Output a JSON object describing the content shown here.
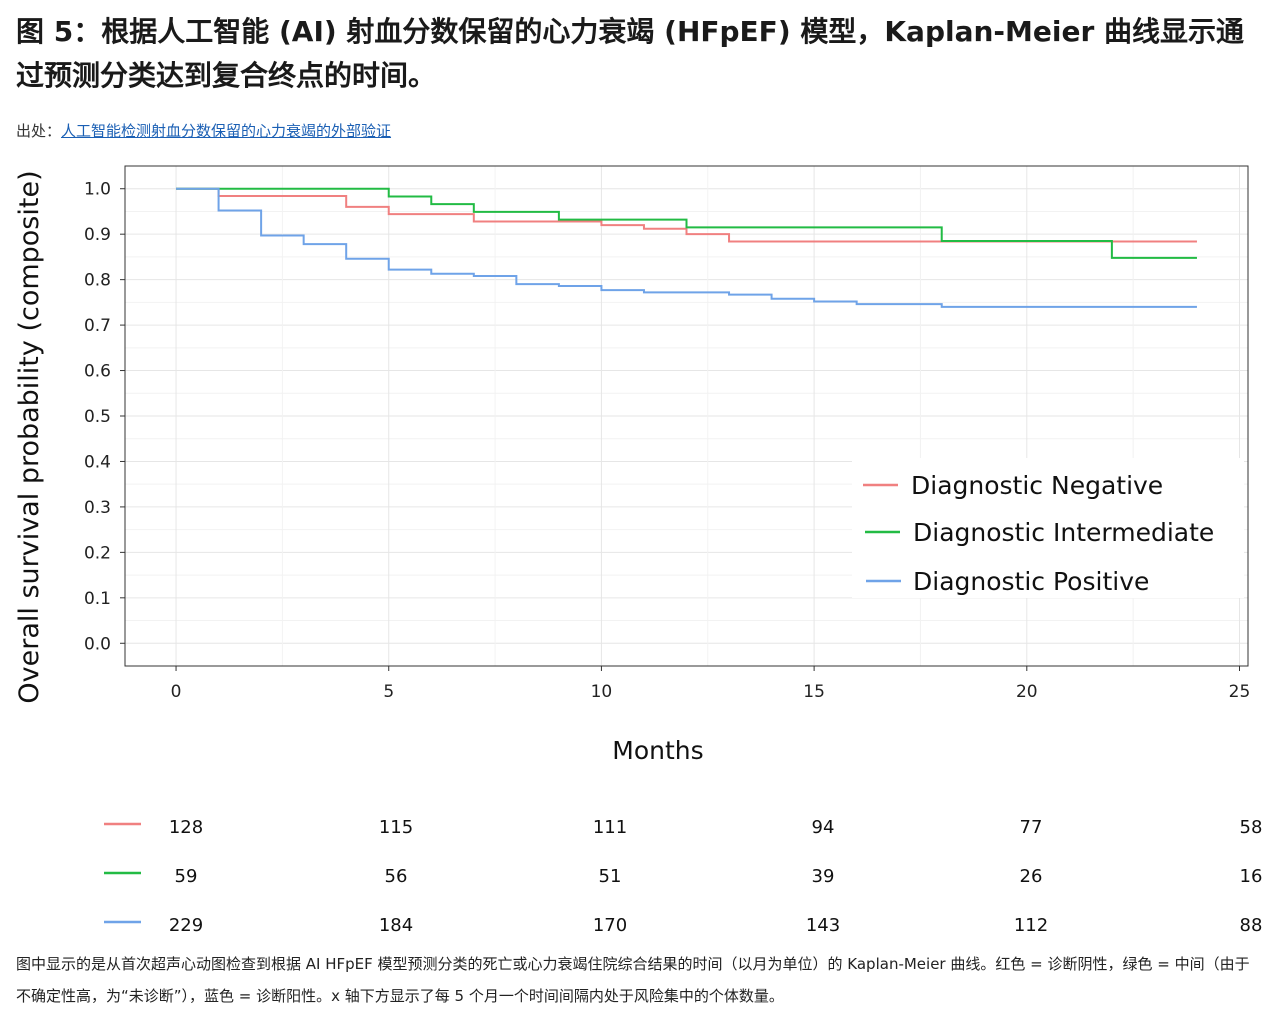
{
  "header": {
    "title": "图 5：根据人工智能 (AI) 射血分数保留的心力衰竭 (HFpEF) 模型，Kaplan-Meier 曲线显示通过预测分类达到复合终点的时间。",
    "source_prefix": "出处：",
    "source_link": "人工智能检测射血分数保留的心力衰竭的外部验证"
  },
  "caption": "图中显示的是从首次超声心动图检查到根据 AI HFpEF 模型预测分类的死亡或心力衰竭住院综合结果的时间（以月为单位）的 Kaplan-Meier 曲线。红色 = 诊断阴性，绿色 = 中间（由于不确定性高，为“未诊断”），蓝色 = 诊断阳性。x 轴下方显示了每 5 个月一个时间间隔内处于风险集中的个体数量。",
  "chart_data": {
    "type": "line",
    "step": true,
    "xlabel": "Months",
    "ylabel": "Overall survival probability (composite)",
    "xlim": [
      -1.2,
      25.2
    ],
    "ylim": [
      -0.05,
      1.05
    ],
    "xticks": [
      "0",
      "5",
      "10",
      "15",
      "20",
      "25"
    ],
    "yticks": [
      "0.0",
      "0.1",
      "0.2",
      "0.3",
      "0.4",
      "0.5",
      "0.6",
      "0.7",
      "0.8",
      "0.9",
      "1.0"
    ],
    "grid": true,
    "legend_position": "lower-right",
    "series": [
      {
        "name": "Diagnostic Negative",
        "color": "#f08080",
        "x": [
          0,
          1,
          4,
          5,
          7,
          10,
          11,
          12,
          13,
          24
        ],
        "y": [
          1.0,
          0.984,
          0.96,
          0.944,
          0.928,
          0.92,
          0.912,
          0.9,
          0.884,
          0.884
        ]
      },
      {
        "name": "Diagnostic Intermediate",
        "color": "#22bb44",
        "x": [
          0,
          5,
          6,
          7,
          9,
          12,
          18,
          22,
          24
        ],
        "y": [
          1.0,
          0.983,
          0.966,
          0.949,
          0.932,
          0.915,
          0.885,
          0.848,
          0.848
        ]
      },
      {
        "name": "Diagnostic Positive",
        "color": "#6fa3e8",
        "x": [
          0,
          1,
          2,
          3,
          4,
          5,
          6,
          7,
          8,
          9,
          10,
          11,
          13,
          14,
          15,
          16,
          18,
          24
        ],
        "y": [
          1.0,
          0.952,
          0.897,
          0.878,
          0.846,
          0.822,
          0.813,
          0.808,
          0.79,
          0.786,
          0.777,
          0.772,
          0.767,
          0.758,
          0.752,
          0.746,
          0.74,
          0.74
        ]
      }
    ],
    "risk_table": {
      "times": [
        0,
        5,
        10,
        15,
        20,
        24
      ],
      "rows": [
        {
          "color": "#f08080",
          "values": [
            "128",
            "115",
            "111",
            "94",
            "77",
            "58"
          ]
        },
        {
          "color": "#22bb44",
          "values": [
            "59",
            "56",
            "51",
            "39",
            "26",
            "16"
          ]
        },
        {
          "color": "#6fa3e8",
          "values": [
            "229",
            "184",
            "170",
            "143",
            "112",
            "88"
          ]
        }
      ]
    }
  }
}
